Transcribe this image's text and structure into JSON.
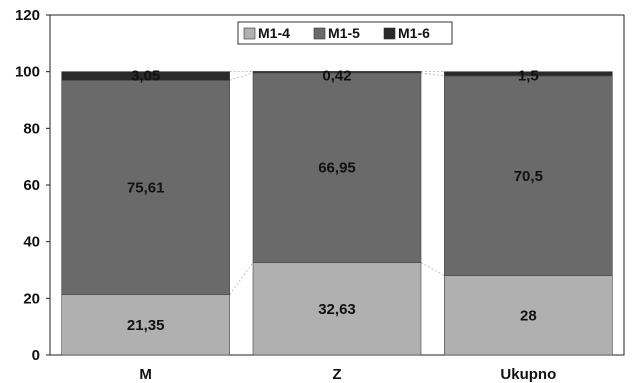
{
  "chart_data": {
    "type": "bar",
    "stacked": true,
    "percent_stacked": true,
    "categories": [
      "M",
      "Z",
      "Ukupno"
    ],
    "series": [
      {
        "name": "M1-4",
        "values": [
          21.35,
          32.63,
          28
        ],
        "labels": [
          "21,35",
          "32,63",
          "28"
        ],
        "color": "#b0b0b0"
      },
      {
        "name": "M1-5",
        "values": [
          75.61,
          66.95,
          70.5
        ],
        "labels": [
          "75,61",
          "66,95",
          "70,5"
        ],
        "color": "#6a6a6a"
      },
      {
        "name": "M1-6",
        "values": [
          3.05,
          0.42,
          1.5
        ],
        "labels": [
          "3,05",
          "0,42",
          "1,5"
        ],
        "color": "#2a2a2a"
      }
    ],
    "ylim": [
      0,
      120
    ],
    "yticks": [
      "0",
      "20",
      "40",
      "60",
      "80",
      "100",
      "120"
    ],
    "grid": false,
    "legend": "top-center",
    "title": "",
    "xlabel": "",
    "ylabel": ""
  }
}
